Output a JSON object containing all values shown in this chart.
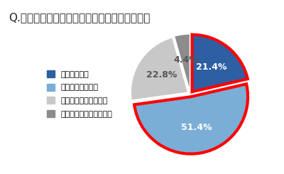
{
  "title": "Q.梅雨時期、食中毒対策を意識していますか。",
  "slices": [
    21.4,
    51.4,
    22.8,
    4.4
  ],
  "labels": [
    "21.4%",
    "51.4%",
    "22.8%",
    "4.4%"
  ],
  "colors": [
    "#2e5fa3",
    "#7aaed6",
    "#c8c8c8",
    "#8c8c8c"
  ],
  "legend_labels": [
    "意識している",
    "少し意識している",
    "あまり意識していない",
    "まったく意識していない"
  ],
  "explode": [
    0.05,
    0.05,
    0.05,
    0.05
  ],
  "startangle": 90,
  "highlight_slices": [
    0,
    1
  ],
  "highlight_color": "#ff0000",
  "highlight_lw": 3,
  "background_color": "#ffffff",
  "title_fontsize": 11,
  "label_fontsize": 9,
  "legend_fontsize": 8
}
